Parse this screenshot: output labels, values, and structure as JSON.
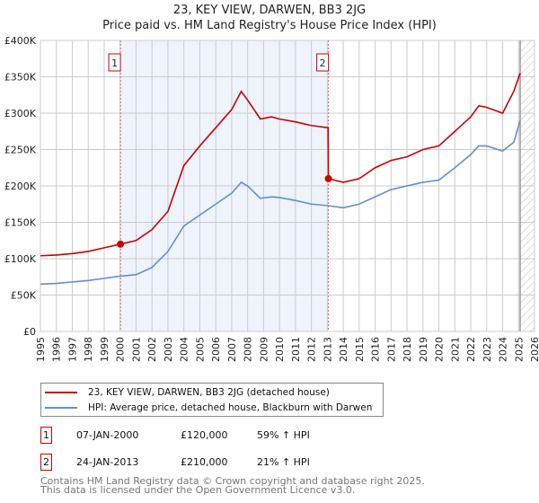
{
  "title": "23, KEY VIEW, DARWEN, BB3 2JG",
  "subtitle": "Price paid vs. HM Land Registry's House Price Index (HPI)",
  "chart_data": {
    "type": "line",
    "xlim": [
      1995,
      2026
    ],
    "ylim": [
      0,
      400000
    ],
    "xticks": [
      1995,
      1996,
      1997,
      1998,
      1999,
      2000,
      2001,
      2002,
      2003,
      2004,
      2005,
      2006,
      2007,
      2008,
      2009,
      2010,
      2011,
      2012,
      2013,
      2014,
      2015,
      2016,
      2017,
      2018,
      2019,
      2020,
      2021,
      2022,
      2023,
      2024,
      2025,
      2026
    ],
    "yticks": [
      {
        "v": 0,
        "label": "£0"
      },
      {
        "v": 50000,
        "label": "£50K"
      },
      {
        "v": 100000,
        "label": "£100K"
      },
      {
        "v": 150000,
        "label": "£150K"
      },
      {
        "v": 200000,
        "label": "£200K"
      },
      {
        "v": 250000,
        "label": "£250K"
      },
      {
        "v": 300000,
        "label": "£300K"
      },
      {
        "v": 350000,
        "label": "£350K"
      },
      {
        "v": 400000,
        "label": "£400K"
      }
    ],
    "series": [
      {
        "name": "23, KEY VIEW, DARWEN, BB3 2JG (detached house)",
        "color": "#cc0000",
        "x": [
          1995,
          1996,
          1997,
          1998,
          1999,
          2000.02,
          2001,
          2002,
          2003,
          2004,
          2005,
          2006,
          2007,
          2007.6,
          2008,
          2008.8,
          2009.5,
          2010,
          2011,
          2012,
          2013.05,
          2013.07,
          2014,
          2015,
          2016,
          2017,
          2018,
          2019,
          2020,
          2021,
          2022,
          2022.5,
          2023,
          2024,
          2024.7,
          2025.1
        ],
        "y": [
          104000,
          105000,
          107000,
          110000,
          115000,
          120000,
          125000,
          140000,
          165000,
          228000,
          255000,
          280000,
          305000,
          330000,
          318000,
          292000,
          295000,
          292000,
          288000,
          283000,
          280000,
          210000,
          205000,
          210000,
          225000,
          235000,
          240000,
          250000,
          255000,
          275000,
          295000,
          310000,
          308000,
          300000,
          330000,
          355000
        ]
      },
      {
        "name": "HPI: Average price, detached house, Blackburn with Darwen",
        "color": "#6090d0",
        "x": [
          1995,
          1996,
          1997,
          1998,
          1999,
          2000,
          2001,
          2002,
          2003,
          2004,
          2005,
          2006,
          2007,
          2007.6,
          2008,
          2008.8,
          2009.5,
          2010,
          2011,
          2012,
          2013,
          2014,
          2015,
          2016,
          2017,
          2018,
          2019,
          2020,
          2021,
          2022,
          2022.5,
          2023,
          2024,
          2024.7,
          2025.1
        ],
        "y": [
          65000,
          66000,
          68000,
          70000,
          73000,
          76000,
          78000,
          88000,
          110000,
          145000,
          160000,
          175000,
          190000,
          205000,
          200000,
          183000,
          185000,
          184000,
          180000,
          175000,
          173000,
          170000,
          175000,
          185000,
          195000,
          200000,
          205000,
          208000,
          225000,
          243000,
          255000,
          255000,
          248000,
          260000,
          290000
        ]
      }
    ],
    "sales": [
      {
        "id": "1",
        "x": 2000.02,
        "y": 120000
      },
      {
        "id": "2",
        "x": 2013.07,
        "y": 210000
      }
    ],
    "shaded_range": [
      2000.02,
      2013.07
    ],
    "hatched_from": 2025.1
  },
  "legend": [
    "23, KEY VIEW, DARWEN, BB3 2JG (detached house)",
    "HPI: Average price, detached house, Blackburn with Darwen"
  ],
  "transactions": [
    {
      "id": "1",
      "date": "07-JAN-2000",
      "price": "£120,000",
      "hpi": "59% ↑ HPI"
    },
    {
      "id": "2",
      "date": "24-JAN-2013",
      "price": "£210,000",
      "hpi": "21% ↑ HPI"
    }
  ],
  "footer": [
    "Contains HM Land Registry data © Crown copyright and database right 2025.",
    "This data is licensed under the Open Government Licence v3.0."
  ]
}
